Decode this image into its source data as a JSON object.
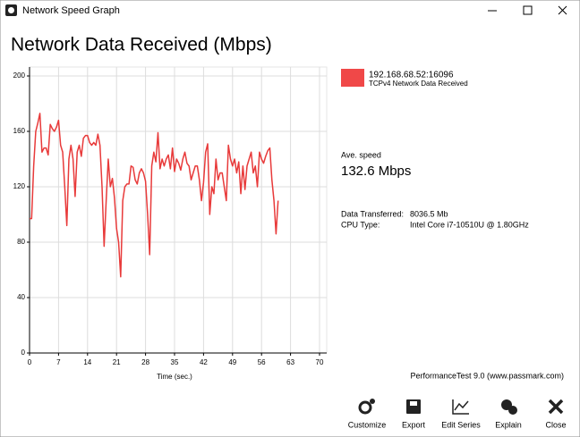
{
  "window": {
    "title": "Network Speed Graph"
  },
  "heading": "Network Data Received (Mbps)",
  "chart_data": {
    "type": "line",
    "x_label": "Time (sec.)",
    "x": [
      0,
      0.5,
      1,
      1.5,
      2,
      2.5,
      3,
      3.5,
      4,
      4.5,
      5,
      5.5,
      6,
      6.5,
      7,
      7.5,
      8,
      8.5,
      9,
      9.5,
      10,
      10.5,
      11,
      11.5,
      12,
      12.5,
      13,
      13.5,
      14,
      14.5,
      15,
      15.5,
      16,
      16.5,
      17,
      17.5,
      18,
      18.5,
      19,
      19.5,
      20,
      20.5,
      21,
      21.5,
      22,
      22.5,
      23,
      23.5,
      24,
      24.5,
      25,
      25.5,
      26,
      26.5,
      27,
      27.5,
      28,
      28.5,
      29,
      29.5,
      30,
      30.5,
      31,
      31.5,
      32,
      32.5,
      33,
      33.5,
      34,
      34.5,
      35,
      35.5,
      36,
      36.5,
      37,
      37.5,
      38,
      38.5,
      39,
      39.5,
      40,
      40.5,
      41,
      41.5,
      42,
      42.5,
      43,
      43.5,
      44,
      44.5,
      45,
      45.5,
      46,
      46.5,
      47,
      47.5,
      48,
      48.5,
      49,
      49.5,
      50,
      50.5,
      51,
      51.5,
      52,
      52.5,
      53,
      53.5,
      54,
      54.5,
      55,
      55.5,
      56,
      56.5,
      57,
      57.5,
      58,
      58.5,
      59,
      59.5,
      60
    ],
    "series": [
      {
        "name": "192.168.68.52:16096",
        "description": "TCPv4 Network Data Received",
        "color": "#e83a3a",
        "values": [
          97,
          97,
          135,
          160,
          166,
          173,
          145,
          148,
          148,
          143,
          165,
          162,
          160,
          163,
          168,
          150,
          145,
          120,
          92,
          140,
          150,
          140,
          113,
          145,
          150,
          142,
          155,
          157,
          157,
          152,
          150,
          152,
          150,
          158,
          150,
          120,
          77,
          110,
          140,
          120,
          126,
          112,
          90,
          80,
          55,
          110,
          120,
          122,
          122,
          135,
          134,
          125,
          122,
          130,
          133,
          130,
          124,
          100,
          71,
          135,
          145,
          138,
          159,
          133,
          140,
          135,
          140,
          143,
          133,
          148,
          131,
          140,
          137,
          132,
          140,
          145,
          137,
          135,
          125,
          130,
          135,
          135,
          125,
          110,
          123,
          145,
          151,
          100,
          120,
          115,
          140,
          125,
          130,
          130,
          120,
          110,
          150,
          140,
          135,
          140,
          130,
          138,
          115,
          135,
          118,
          135,
          140,
          145,
          130,
          135,
          120,
          145,
          140,
          137,
          142,
          146,
          148,
          125,
          110,
          86,
          110
        ]
      }
    ],
    "xlim": [
      0,
      70
    ],
    "xticks": [
      0,
      7,
      14,
      21,
      28,
      35,
      42,
      49,
      56,
      63,
      70
    ],
    "ylim": [
      0,
      200
    ],
    "yticks": [
      0,
      40,
      80,
      120,
      160,
      200
    ],
    "grid": true
  },
  "stats": {
    "avg_label": "Ave. speed",
    "avg_value": "132.6 Mbps",
    "rows": [
      [
        "Data Transferred:",
        "8036.5 Mb"
      ],
      [
        "CPU Type:",
        "Intel Core i7-10510U @ 1.80GHz"
      ]
    ]
  },
  "footer": "PerformanceTest 9.0 (www.passmark.com)",
  "toolbar": [
    "Customize",
    "Export",
    "Edit Series",
    "Explain",
    "Close"
  ]
}
